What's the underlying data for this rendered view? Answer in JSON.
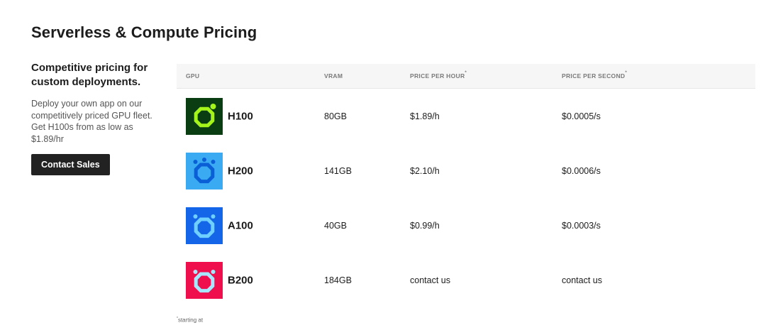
{
  "page": {
    "title": "Serverless & Compute Pricing"
  },
  "sidebar": {
    "heading": "Competitive pricing for custom deployments.",
    "description": "Deploy your own app on our competitively priced GPU fleet. Get H100s from as low as  $1.89/hr",
    "button_label": "Contact Sales"
  },
  "table": {
    "headers": {
      "gpu": "GPU",
      "vram": "VRAM",
      "price_hour": "PRICE PER HOUR",
      "price_second": "PRICE PER SECOND",
      "asterisk": "*"
    },
    "rows": [
      {
        "gpu": "H100",
        "vram": "80GB",
        "price_hour": "$1.89/h",
        "price_second": "$0.0005/s",
        "icon": "gpu-chip-icon",
        "bg": "#0b3d12",
        "fg": "#a6f51a"
      },
      {
        "gpu": "H200",
        "vram": "141GB",
        "price_hour": "$2.10/h",
        "price_second": "$0.0006/s",
        "icon": "gpu-chip-icon",
        "bg": "#3aaaf3",
        "fg": "#0a5fd6"
      },
      {
        "gpu": "A100",
        "vram": "40GB",
        "price_hour": "$0.99/h",
        "price_second": "$0.0003/s",
        "icon": "gpu-chip-icon",
        "bg": "#1565e9",
        "fg": "#6fd0ff"
      },
      {
        "gpu": "B200",
        "vram": "184GB",
        "price_hour": "contact us",
        "price_second": "contact us",
        "icon": "gpu-chip-icon",
        "bg": "#ee0f4c",
        "fg": "#a8e8ff"
      }
    ]
  },
  "footnote": {
    "asterisk": "*",
    "text": "starting at"
  }
}
